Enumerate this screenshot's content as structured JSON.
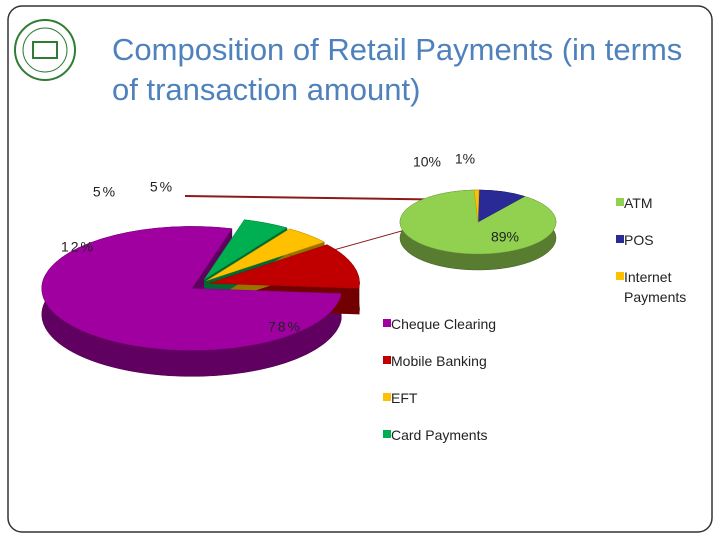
{
  "chart_data": [
    {
      "type": "pie",
      "title": "Composition of Retail Payments (in terms of transaction amount)",
      "categories": [
        "Cheque Clearing",
        "Mobile Banking",
        "EFT",
        "Card Payments"
      ],
      "values": [
        78,
        12,
        5,
        5
      ],
      "value_labels": [
        "78%",
        "12%",
        "5%",
        "5%"
      ],
      "colors": [
        "#a000a0",
        "#c00000",
        "#ffc000",
        "#00b050"
      ]
    },
    {
      "type": "pie",
      "categories": [
        "ATM",
        "POS",
        "Internet Payments"
      ],
      "values": [
        89,
        10,
        1
      ],
      "value_labels": [
        "89%",
        "10%",
        "1%"
      ],
      "colors": [
        "#92d050",
        "#2a2a96",
        "#ffc000"
      ]
    }
  ]
}
